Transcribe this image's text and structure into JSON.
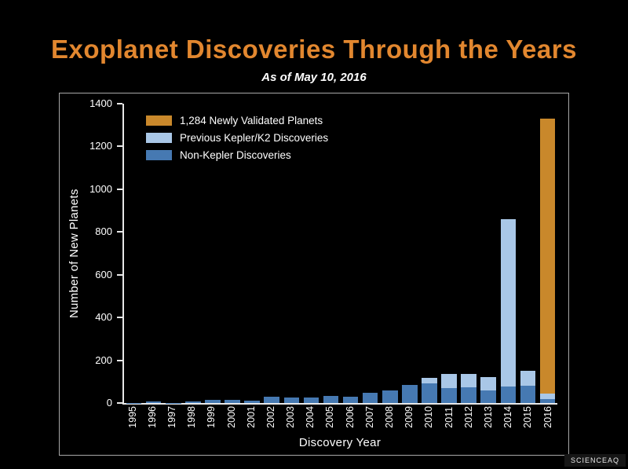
{
  "title": "Exoplanet Discoveries Through the Years",
  "subtitle": "As of May 10, 2016",
  "watermark": "SCIENCEAQ",
  "colors": {
    "title": "#e2872f",
    "validated": "#c9882b",
    "kepler": "#a9c7e7",
    "non_kepler": "#4679b2",
    "axis": "#e8e8e8",
    "text": "#ffffff"
  },
  "chart_data": {
    "type": "bar",
    "stacked": true,
    "title": "Exoplanet Discoveries Through the Years",
    "subtitle": "As of May 10, 2016",
    "xlabel": "Discovery Year",
    "ylabel": "Number of New Planets",
    "ylim": [
      0,
      1400
    ],
    "yticks": [
      0,
      200,
      400,
      600,
      800,
      1000,
      1200,
      1400
    ],
    "grid": false,
    "legend_position": "top-left",
    "categories": [
      "1995",
      "1996",
      "1997",
      "1998",
      "1999",
      "2000",
      "2001",
      "2002",
      "2003",
      "2004",
      "2005",
      "2006",
      "2007",
      "2008",
      "2009",
      "2010",
      "2011",
      "2012",
      "2013",
      "2014",
      "2015",
      "2016"
    ],
    "series": [
      {
        "name": "Non-Kepler Discoveries",
        "color_key": "non_kepler",
        "values": [
          1,
          6,
          1,
          7,
          13,
          16,
          12,
          29,
          25,
          26,
          33,
          29,
          47,
          58,
          84,
          92,
          70,
          73,
          60,
          76,
          80,
          20
        ]
      },
      {
        "name": "Previous Kepler/K2 Discoveries",
        "color_key": "kepler",
        "values": [
          0,
          0,
          0,
          0,
          0,
          0,
          0,
          0,
          0,
          0,
          0,
          0,
          0,
          0,
          0,
          25,
          65,
          62,
          62,
          784,
          70,
          26
        ]
      },
      {
        "name": "1,284 Newly Validated Planets",
        "color_key": "validated",
        "values": [
          0,
          0,
          0,
          0,
          0,
          0,
          0,
          0,
          0,
          0,
          0,
          0,
          0,
          0,
          0,
          0,
          0,
          0,
          0,
          0,
          0,
          1284
        ]
      }
    ],
    "legend": [
      {
        "label": "1,284 Newly Validated Planets",
        "color_key": "validated"
      },
      {
        "label": "Previous Kepler/K2 Discoveries",
        "color_key": "kepler"
      },
      {
        "label": "Non-Kepler Discoveries",
        "color_key": "non_kepler"
      }
    ]
  }
}
